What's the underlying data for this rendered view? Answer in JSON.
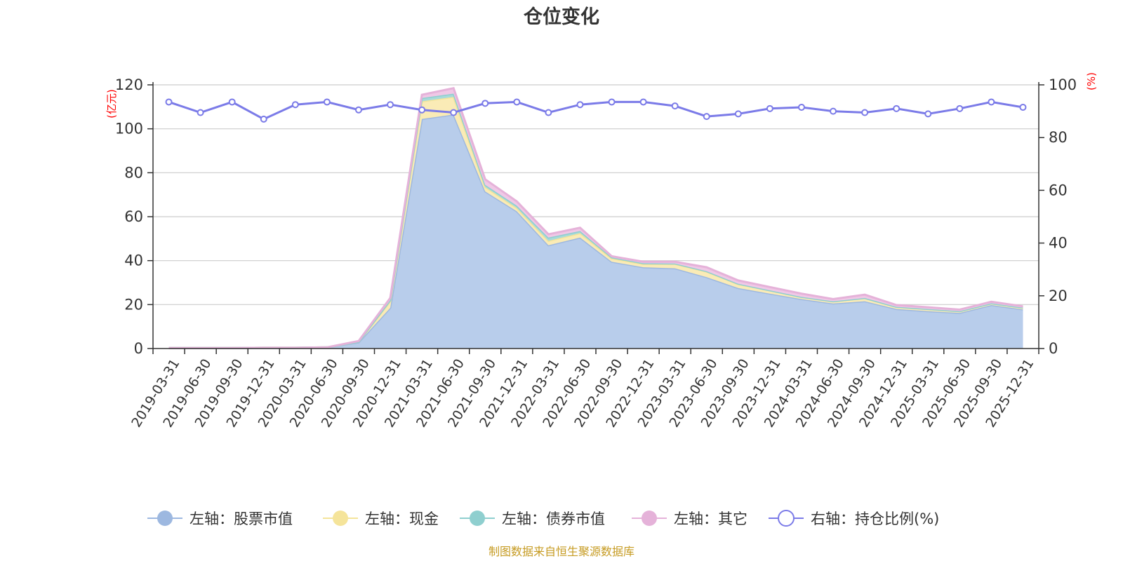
{
  "chart_data": {
    "type": "area",
    "title": "仓位变化",
    "left_axis_unit": "(亿元)",
    "right_axis_unit": "(%)",
    "left_ylim": [
      0,
      120
    ],
    "left_ticks": [
      0,
      20,
      40,
      60,
      80,
      100,
      120
    ],
    "right_ylim": [
      0,
      100
    ],
    "right_ticks": [
      0,
      20,
      40,
      60,
      80,
      100
    ],
    "categories": [
      "2019-03-31",
      "2019-06-30",
      "2019-09-30",
      "2019-12-31",
      "2020-03-31",
      "2020-06-30",
      "2020-09-30",
      "2020-12-31",
      "2021-03-31",
      "2021-06-30",
      "2021-09-30",
      "2021-12-31",
      "2022-03-31",
      "2022-06-30",
      "2022-09-30",
      "2022-12-31",
      "2023-03-31",
      "2023-06-30",
      "2023-09-30",
      "2023-12-31",
      "2024-03-31",
      "2024-06-30",
      "2024-09-30",
      "2024-12-31",
      "2025-03-31",
      "2025-06-30",
      "2025-09-30",
      "2025-12-31"
    ],
    "stacked_series": [
      {
        "name": "左轴：股票市值",
        "color": "#9db8e0",
        "fill": "#b8cdeb",
        "values": [
          0.2,
          0.2,
          0.2,
          0.3,
          0.3,
          0.5,
          2.8,
          18.5,
          104.5,
          106.5,
          71.5,
          62.5,
          47,
          50.5,
          39.5,
          37,
          36.5,
          32.5,
          27.5,
          25,
          22.5,
          20.5,
          21.5,
          18,
          17,
          16.2,
          19.8,
          17.8
        ]
      },
      {
        "name": "左轴：现金",
        "color": "#f5e49a",
        "fill": "#faebb6",
        "values": [
          0.05,
          0.05,
          0.05,
          0.05,
          0.05,
          0.05,
          0.3,
          3,
          8,
          8,
          2,
          1.5,
          2,
          2,
          1.5,
          1.5,
          2,
          2.5,
          1.8,
          1.5,
          1,
          1,
          1.5,
          1,
          1,
          0.8,
          0.8,
          0.8
        ]
      },
      {
        "name": "左轴：债券市值",
        "color": "#8fcfcf",
        "fill": "#a8dada",
        "values": [
          0,
          0,
          0,
          0,
          0,
          0,
          0,
          0.5,
          1.5,
          1.5,
          1,
          1,
          1.5,
          1,
          0.5,
          0.3,
          0.2,
          0.2,
          0.2,
          0,
          0,
          0,
          0,
          0,
          0,
          0,
          0,
          0
        ]
      },
      {
        "name": "左轴：其它",
        "color": "#e5b2d9",
        "fill": "#f0c8e6",
        "values": [
          0,
          0,
          0,
          0,
          0,
          0,
          0.3,
          1,
          1.5,
          2.5,
          2.5,
          2,
          1.5,
          1.5,
          0.5,
          0.7,
          0.8,
          1.8,
          1.5,
          1.5,
          1.5,
          1,
          1.5,
          0.8,
          0.8,
          0.7,
          0.7,
          0.6
        ]
      }
    ],
    "line_series": {
      "name": "右轴：持仓比例(%)",
      "color": "#7b7be8",
      "values": [
        93.5,
        89.5,
        93.5,
        87,
        92.5,
        93.5,
        90.5,
        92.5,
        90.5,
        89.5,
        93,
        93.5,
        89.5,
        92.5,
        93.5,
        93.5,
        92,
        88,
        89,
        91,
        91.5,
        90,
        89.5,
        91,
        89,
        91,
        93.5,
        91.5
      ]
    },
    "legend_position": "bottom",
    "grid": true
  },
  "legend": [
    {
      "label": "左轴：股票市值",
      "color": "#9db8e0",
      "kind": "filled"
    },
    {
      "label": "左轴：现金",
      "color": "#f5e49a",
      "kind": "filled"
    },
    {
      "label": "左轴：债券市值",
      "color": "#8fcfcf",
      "kind": "filled"
    },
    {
      "label": "左轴：其它",
      "color": "#e5b2d9",
      "kind": "filled"
    },
    {
      "label": "右轴：持仓比例(%)",
      "color": "#7b7be8",
      "kind": "hollow"
    }
  ],
  "source_text": "制图数据来自恒生聚源数据库"
}
